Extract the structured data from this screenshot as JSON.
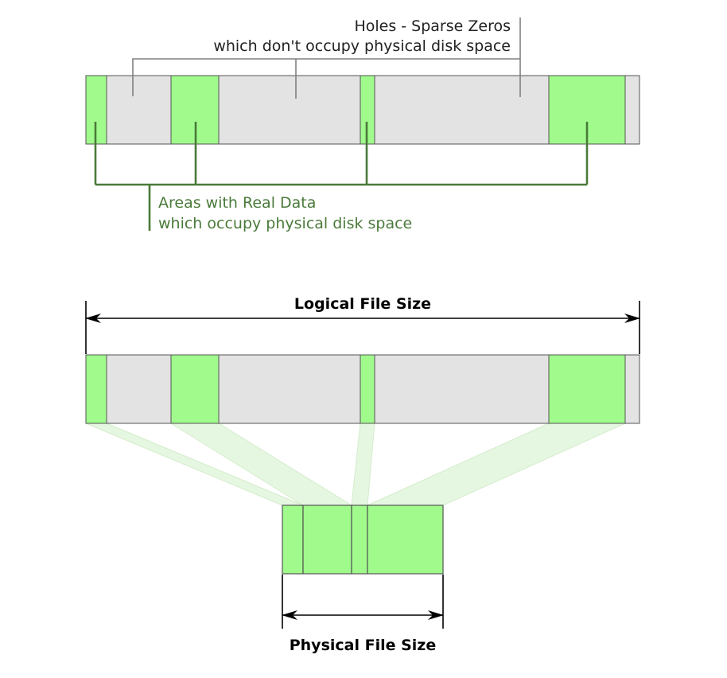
{
  "holes_label": {
    "line1": "Holes - Sparse Zeros",
    "line2": "which don't occupy physical disk space"
  },
  "data_label": {
    "line1": "Areas with Real Data",
    "line2": "which occupy physical disk space"
  },
  "logical_size_label": "Logical File Size",
  "physical_size_label": "Physical File Size",
  "colors": {
    "data_fill": "#a0fb8c",
    "hole_fill": "#e3e3e3",
    "outline": "#555555",
    "data_callout": "#4a7a3a",
    "hole_callout": "#808080",
    "projection": "#dff5d8",
    "dimension": "#000000"
  },
  "icons": [
    "arrow-left-icon",
    "arrow-right-icon"
  ]
}
